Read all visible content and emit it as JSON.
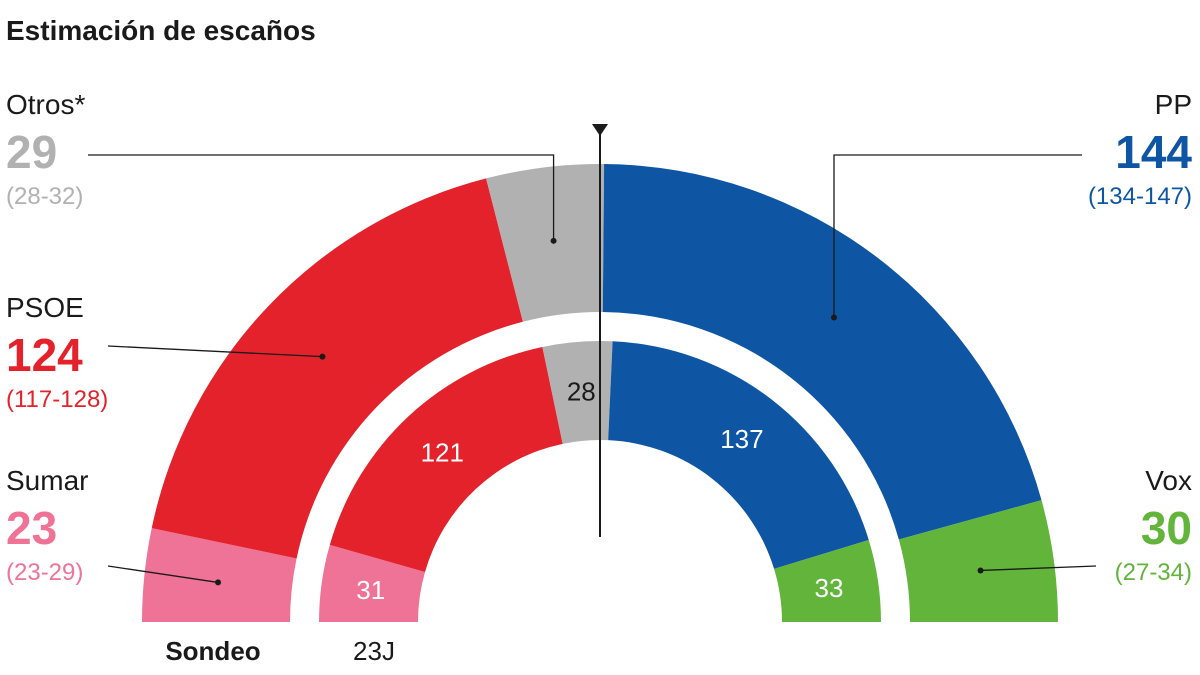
{
  "chart_data": {
    "type": "hemicycle",
    "title": "Estimación de escaños",
    "total_seats": 350,
    "rings": [
      {
        "name": "Sondeo",
        "order": [
          "Sumar",
          "PSOE",
          "Otros*",
          "PP",
          "Vox"
        ]
      },
      {
        "name": "23J",
        "order": [
          "Sumar",
          "PSOE",
          "Otros",
          "PP",
          "Vox"
        ]
      }
    ],
    "parties": [
      {
        "name": "Otros*",
        "key": "otros",
        "color": "#b1b1b1",
        "sondeo": 29,
        "range": "(28-32)",
        "result_23j": 28
      },
      {
        "name": "PSOE",
        "key": "psoe",
        "color": "#e3222b",
        "sondeo": 124,
        "range": "(117-128)",
        "result_23j": 121
      },
      {
        "name": "Sumar",
        "key": "sumar",
        "color": "#ee7396",
        "sondeo": 23,
        "range": "(23-29)",
        "result_23j": 31
      },
      {
        "name": "PP",
        "key": "pp",
        "color": "#0e55a4",
        "sondeo": 144,
        "range": "(134-147)",
        "result_23j": 137
      },
      {
        "name": "Vox",
        "key": "vox",
        "color": "#62b43b",
        "sondeo": 30,
        "range": "(27-34)",
        "result_23j": 33
      }
    ]
  }
}
